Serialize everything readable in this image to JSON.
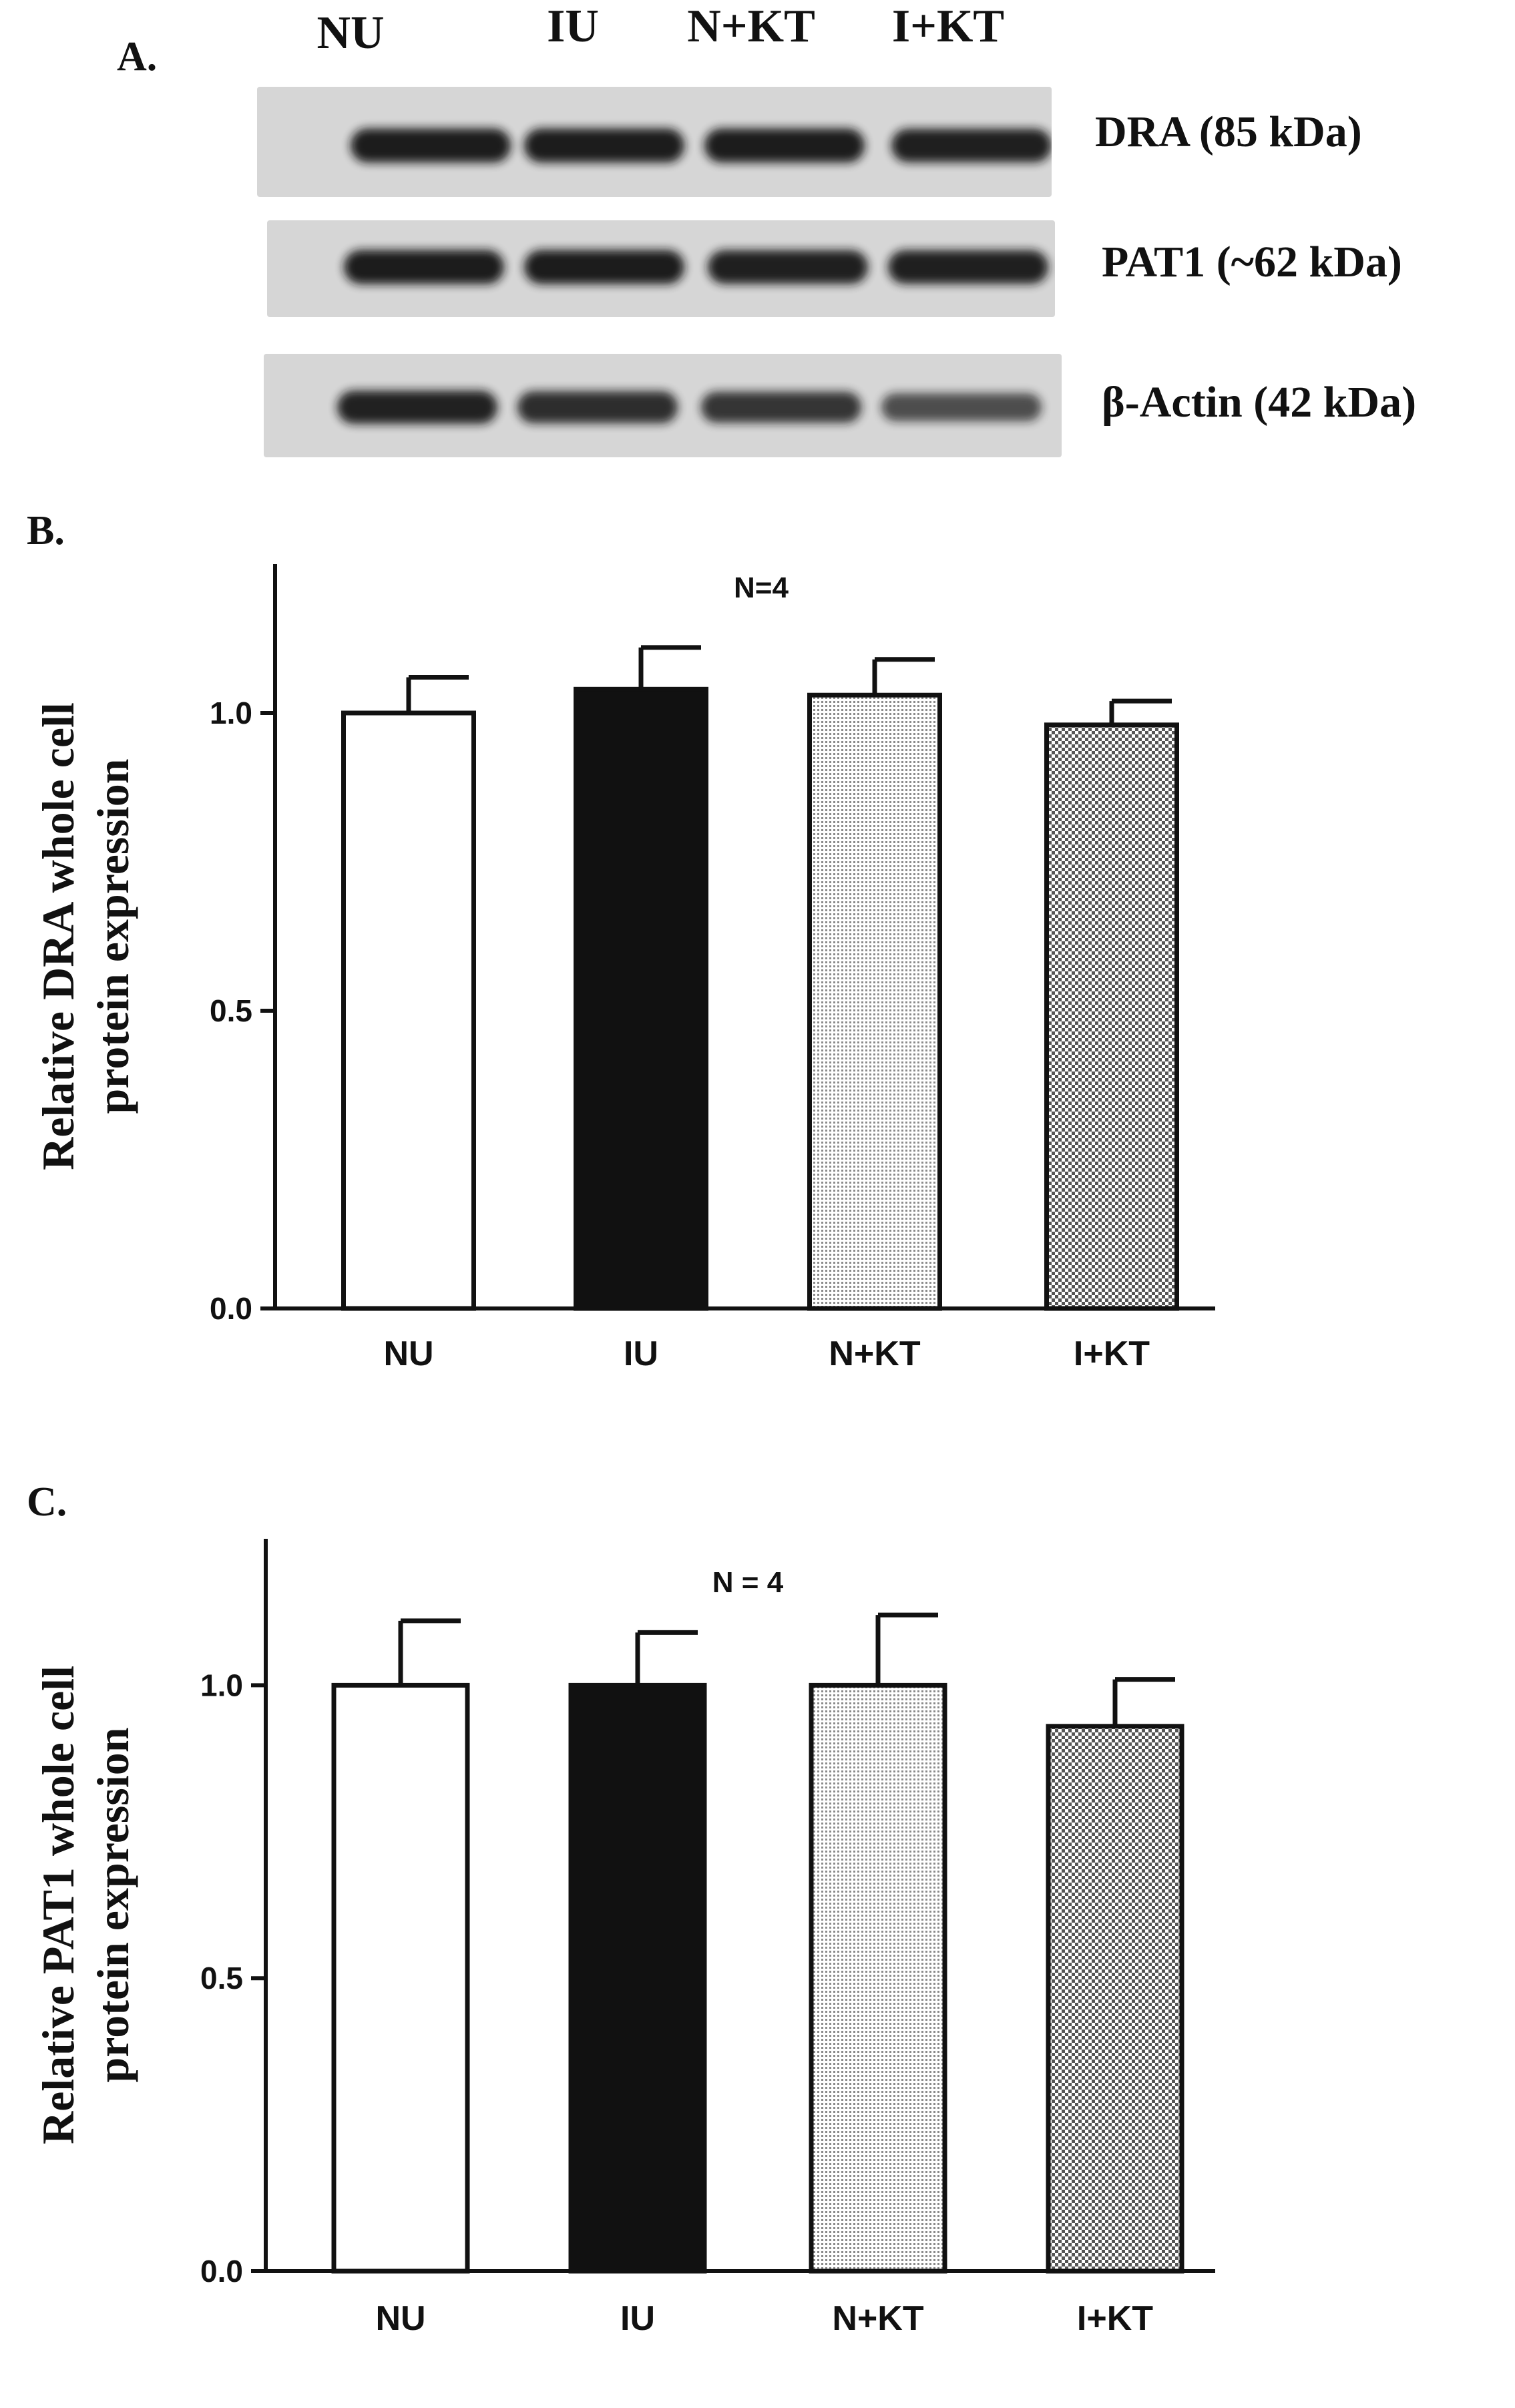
{
  "colors": {
    "ink": "#111111",
    "blot_background": "#d6d6d6",
    "band": "#161616",
    "bar_black": "#111111",
    "bar_white": "#ffffff"
  },
  "panel_a": {
    "label": "A.",
    "lanes": [
      "NU",
      "IU",
      "N+KT",
      "I+KT"
    ],
    "blots": [
      {
        "name": "dra",
        "label": "DRA (85 kDa)",
        "band_intensity": [
          0.95,
          0.95,
          0.95,
          0.92
        ]
      },
      {
        "name": "pat1",
        "label": "PAT1 (~62 kDa)",
        "band_intensity": [
          0.95,
          0.95,
          0.93,
          0.93
        ]
      },
      {
        "name": "beta-actin",
        "label": "β-Actin (42 kDa)",
        "band_intensity": [
          0.9,
          0.82,
          0.75,
          0.55
        ]
      }
    ]
  },
  "chart_data": [
    {
      "panel_label": "B.",
      "type": "bar",
      "title": "N=4",
      "categories": [
        "NU",
        "IU",
        "N+KT",
        "I+KT"
      ],
      "values": [
        1.0,
        1.04,
        1.03,
        0.98
      ],
      "errors": [
        0.06,
        0.07,
        0.06,
        0.04
      ],
      "fills": [
        "white",
        "black",
        "fine-dots",
        "checker"
      ],
      "xlabel": "",
      "ylabel_lines": [
        "Relative DRA whole cell",
        "protein expression"
      ],
      "ylim": [
        0,
        1.25
      ],
      "yticks": [
        0.0,
        0.5,
        1.0
      ],
      "ytick_labels": [
        "0.0",
        "0.5",
        "1.0"
      ],
      "grid": false
    },
    {
      "panel_label": "C.",
      "type": "bar",
      "title": "N = 4",
      "categories": [
        "NU",
        "IU",
        "N+KT",
        "I+KT"
      ],
      "values": [
        1.0,
        1.0,
        1.0,
        0.93
      ],
      "errors": [
        0.11,
        0.09,
        0.12,
        0.08
      ],
      "fills": [
        "white",
        "black",
        "fine-dots",
        "checker"
      ],
      "xlabel": "",
      "ylabel_lines": [
        "Relative PAT1 whole cell",
        "protein expression"
      ],
      "ylim": [
        0,
        1.25
      ],
      "yticks": [
        0.0,
        0.5,
        1.0
      ],
      "ytick_labels": [
        "0.0",
        "0.5",
        "1.0"
      ],
      "grid": false
    }
  ]
}
